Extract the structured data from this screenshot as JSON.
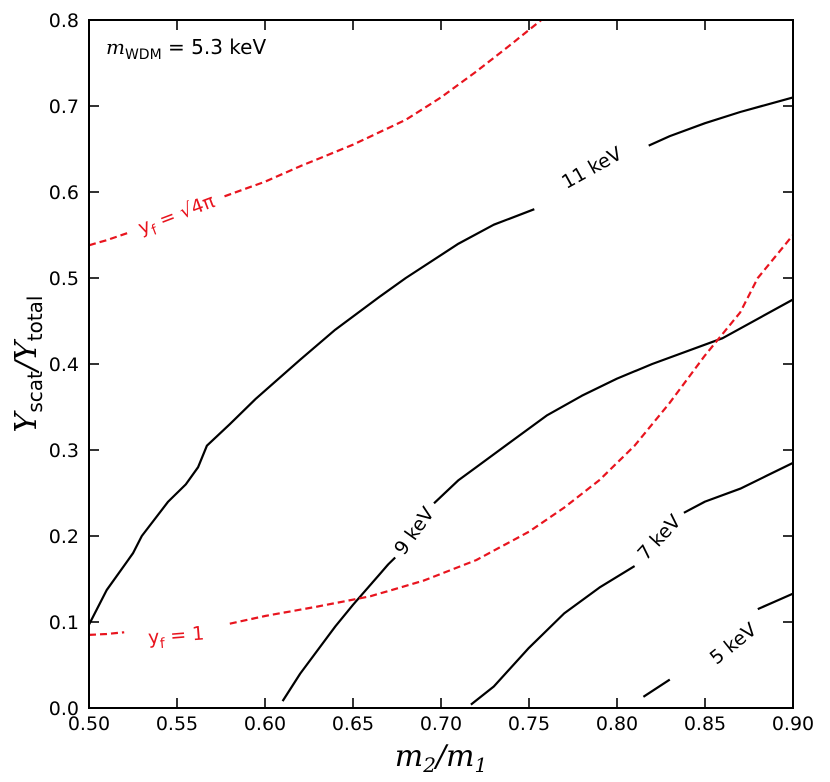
{
  "chart_data": {
    "type": "line",
    "title": "",
    "xlabel_main": "m",
    "xlabel_num_sub": "2",
    "xlabel_sep": "/m",
    "xlabel_den_sub": "1",
    "ylabel_main": "Y",
    "ylabel_num_sub": "scat",
    "ylabel_sep": "/Y",
    "ylabel_den_sub": "total",
    "xlim": [
      0.5,
      0.9
    ],
    "ylim": [
      0.0,
      0.8
    ],
    "xticks": [
      "0.50",
      "0.55",
      "0.60",
      "0.65",
      "0.70",
      "0.75",
      "0.80",
      "0.85",
      "0.90"
    ],
    "yticks": [
      "0.0",
      "0.1",
      "0.2",
      "0.3",
      "0.4",
      "0.5",
      "0.6",
      "0.7",
      "0.8"
    ],
    "annotation": {
      "prefix": "m",
      "sub": "WDM",
      "text": " = 5.3 keV"
    },
    "series": [
      {
        "name": "11 keV",
        "color": "#000000",
        "style": "solid",
        "label": {
          "text": "11 keV",
          "at": [
            0.7855,
            0.6287
          ]
        },
        "points": [
          [
            0.5,
            0.097
          ],
          [
            0.51,
            0.137
          ],
          [
            0.525,
            0.18
          ],
          [
            0.53,
            0.2
          ],
          [
            0.545,
            0.24
          ],
          [
            0.555,
            0.26
          ],
          [
            0.562,
            0.28
          ],
          [
            0.567,
            0.305
          ],
          [
            0.58,
            0.33
          ],
          [
            0.595,
            0.36
          ],
          [
            0.62,
            0.405
          ],
          [
            0.64,
            0.44
          ],
          [
            0.665,
            0.478
          ],
          [
            0.68,
            0.5
          ],
          [
            0.71,
            0.54
          ],
          [
            0.73,
            0.562
          ],
          [
            0.753,
            0.58
          ]
        ],
        "points2": [
          [
            0.818,
            0.654
          ],
          [
            0.83,
            0.665
          ],
          [
            0.85,
            0.68
          ],
          [
            0.87,
            0.693
          ],
          [
            0.9,
            0.71
          ]
        ]
      },
      {
        "name": "9 keV",
        "color": "#000000",
        "style": "solid",
        "label": {
          "text": "9 keV",
          "at": [
            0.6845,
            0.2063
          ]
        },
        "points": [
          [
            0.61,
            0.008
          ],
          [
            0.62,
            0.04
          ],
          [
            0.64,
            0.095
          ],
          [
            0.65,
            0.12
          ],
          [
            0.67,
            0.167
          ],
          [
            0.674,
            0.175
          ]
        ],
        "points2": [
          [
            0.696,
            0.238
          ],
          [
            0.71,
            0.265
          ],
          [
            0.72,
            0.28
          ],
          [
            0.74,
            0.31
          ],
          [
            0.76,
            0.34
          ],
          [
            0.78,
            0.363
          ],
          [
            0.8,
            0.383
          ],
          [
            0.82,
            0.4
          ],
          [
            0.86,
            0.43
          ],
          [
            0.9,
            0.475
          ]
        ]
      },
      {
        "name": "7 keV",
        "color": "#000000",
        "style": "solid",
        "label": {
          "text": "7 keV",
          "at": [
            0.8237,
            0.1989
          ]
        },
        "points": [
          [
            0.717,
            0.004
          ],
          [
            0.73,
            0.025
          ],
          [
            0.75,
            0.07
          ],
          [
            0.77,
            0.11
          ],
          [
            0.79,
            0.14
          ],
          [
            0.81,
            0.165
          ]
        ],
        "points2": [
          [
            0.838,
            0.227
          ],
          [
            0.85,
            0.24
          ],
          [
            0.87,
            0.255
          ],
          [
            0.885,
            0.27
          ],
          [
            0.9,
            0.285
          ]
        ]
      },
      {
        "name": "5 keV",
        "color": "#000000",
        "style": "solid",
        "label": {
          "text": "5 keV",
          "at": [
            0.8658,
            0.0754
          ]
        },
        "points": [
          [
            0.815,
            0.013
          ],
          [
            0.83,
            0.033
          ]
        ],
        "points2": [
          [
            0.88,
            0.115
          ],
          [
            0.89,
            0.124
          ],
          [
            0.9,
            0.133
          ]
        ]
      },
      {
        "name": "y_f = sqrt(4pi)",
        "color": "#e8141e",
        "style": "dashed",
        "label": {
          "text": "y",
          "sub": "f",
          "rest": " = √4π",
          "at": [
            0.5495,
            0.5747
          ]
        },
        "points": [
          [
            0.5,
            0.538
          ],
          [
            0.51,
            0.544
          ],
          [
            0.523,
            0.553
          ]
        ],
        "points2": [
          [
            0.577,
            0.595
          ],
          [
            0.6,
            0.612
          ],
          [
            0.62,
            0.63
          ],
          [
            0.65,
            0.655
          ],
          [
            0.68,
            0.684
          ],
          [
            0.7,
            0.71
          ],
          [
            0.72,
            0.74
          ],
          [
            0.74,
            0.772
          ],
          [
            0.757,
            0.8
          ]
        ]
      },
      {
        "name": "y_f = 1",
        "color": "#e8141e",
        "style": "dashed",
        "label": {
          "text": "y",
          "sub": "f",
          "rest": " = 1",
          "at": [
            0.5495,
            0.0852
          ]
        },
        "points": [
          [
            0.5,
            0.085
          ],
          [
            0.51,
            0.086
          ],
          [
            0.52,
            0.088
          ]
        ],
        "points2": [
          [
            0.58,
            0.098
          ],
          [
            0.6,
            0.107
          ],
          [
            0.63,
            0.118
          ],
          [
            0.66,
            0.13
          ],
          [
            0.69,
            0.148
          ],
          [
            0.72,
            0.172
          ],
          [
            0.75,
            0.205
          ],
          [
            0.77,
            0.233
          ],
          [
            0.79,
            0.265
          ],
          [
            0.81,
            0.305
          ],
          [
            0.83,
            0.355
          ],
          [
            0.85,
            0.41
          ],
          [
            0.87,
            0.46
          ],
          [
            0.88,
            0.5
          ],
          [
            0.89,
            0.525
          ],
          [
            0.9,
            0.55
          ]
        ]
      }
    ]
  }
}
